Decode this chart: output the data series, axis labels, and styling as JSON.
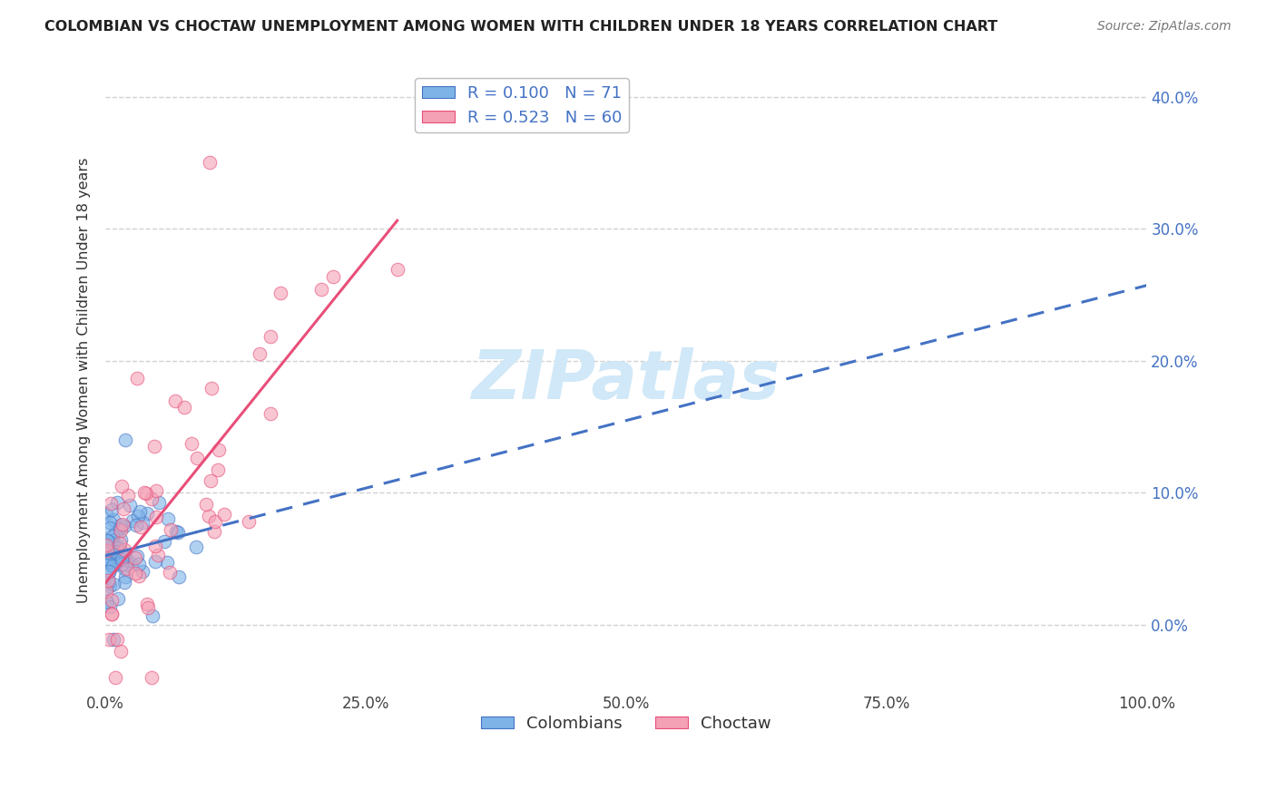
{
  "title": "COLOMBIAN VS CHOCTAW UNEMPLOYMENT AMONG WOMEN WITH CHILDREN UNDER 18 YEARS CORRELATION CHART",
  "source": "Source: ZipAtlas.com",
  "ylabel": "Unemployment Among Women with Children Under 18 years",
  "colombian_R": 0.1,
  "colombian_N": 71,
  "choctaw_R": 0.523,
  "choctaw_N": 60,
  "colombian_color": "#7EB3E8",
  "choctaw_color": "#F4A0B5",
  "colombian_line_color": "#4472C4",
  "choctaw_line_color": "#E84F7A",
  "legend_text_color": "#4472C4",
  "watermark_color": "#D0E8F8",
  "background_color": "#FFFFFF",
  "grid_color": "#CCCCCC",
  "xlim": [
    0,
    100
  ],
  "ylim": [
    -5,
    42
  ],
  "yticks": [
    0,
    10,
    20,
    30,
    40
  ],
  "xticks": [
    0,
    25,
    50,
    75,
    100
  ]
}
